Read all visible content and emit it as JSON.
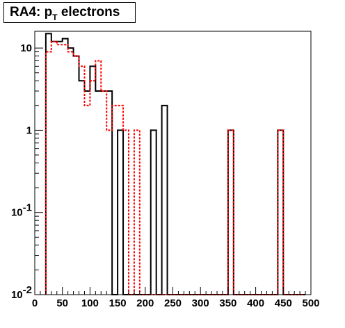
{
  "title": {
    "main": "RA4: p",
    "subscript": "T",
    "rest": "electrons"
  },
  "chart_data": {
    "type": "histogram",
    "title": "RA4: p_T electrons",
    "xlabel": "",
    "ylabel": "",
    "xlim": [
      0,
      500
    ],
    "ylim": [
      0.01,
      16
    ],
    "y_scale": "log",
    "bin_width": 10,
    "x_ticks": [
      0,
      50,
      100,
      150,
      200,
      250,
      300,
      350,
      400,
      450,
      500
    ],
    "x_tick_labels": [
      "0",
      "50",
      "100",
      "150",
      "200",
      "250",
      "300",
      "350",
      "400",
      "450",
      "500"
    ],
    "y_ticks": [
      {
        "value": 0.01,
        "base": "10",
        "exp": "-2"
      },
      {
        "value": 0.1,
        "base": "10",
        "exp": "-1"
      },
      {
        "value": 1,
        "base": "1",
        "exp": ""
      },
      {
        "value": 10,
        "base": "10",
        "exp": ""
      }
    ],
    "grid": false,
    "series": [
      {
        "style": "solid",
        "color": "#000000",
        "bin_edges": [
          20,
          30,
          40,
          50,
          60,
          70,
          80,
          90,
          100,
          110,
          120,
          130,
          140,
          150,
          160,
          170,
          180,
          190,
          200,
          210,
          220,
          230,
          240,
          250,
          260,
          270,
          280,
          290,
          300,
          310,
          320,
          330,
          340,
          350,
          360,
          370,
          380,
          390,
          400,
          410,
          420,
          430,
          440,
          450,
          460,
          470,
          480,
          490
        ],
        "values": [
          15,
          12,
          12,
          13,
          10,
          8,
          4,
          3,
          6,
          3,
          3,
          3,
          0,
          1,
          0,
          0,
          0,
          0,
          0,
          1,
          0,
          2,
          0,
          0,
          0,
          0,
          0,
          0,
          0,
          0,
          0,
          0,
          0,
          1,
          0,
          0,
          0,
          0,
          0,
          0,
          0,
          0,
          1,
          0,
          0,
          0,
          0
        ]
      },
      {
        "style": "dashed",
        "color": "#ff0000",
        "bin_edges": [
          20,
          30,
          40,
          50,
          60,
          70,
          80,
          90,
          100,
          110,
          120,
          130,
          140,
          150,
          160,
          170,
          180,
          190,
          200,
          210,
          220,
          230,
          240,
          250,
          260,
          270,
          280,
          290,
          300,
          310,
          320,
          330,
          340,
          350,
          360,
          370,
          380,
          390,
          400,
          410,
          420,
          430,
          440,
          450,
          460,
          470,
          480,
          490
        ],
        "values": [
          9,
          12,
          11,
          11,
          9,
          8,
          6,
          2,
          4,
          7,
          3,
          1,
          2,
          2,
          1,
          0,
          1,
          0,
          0,
          0,
          0,
          0,
          0,
          0,
          0,
          0,
          0,
          0,
          0,
          0,
          0,
          0,
          0,
          1,
          0,
          0,
          0,
          0,
          0,
          0,
          0,
          0,
          1,
          0,
          0,
          0,
          0
        ]
      }
    ]
  },
  "colors": {
    "background": "#ffffff",
    "frame": "#000000",
    "series1": "#000000",
    "series2": "#ff0000"
  }
}
